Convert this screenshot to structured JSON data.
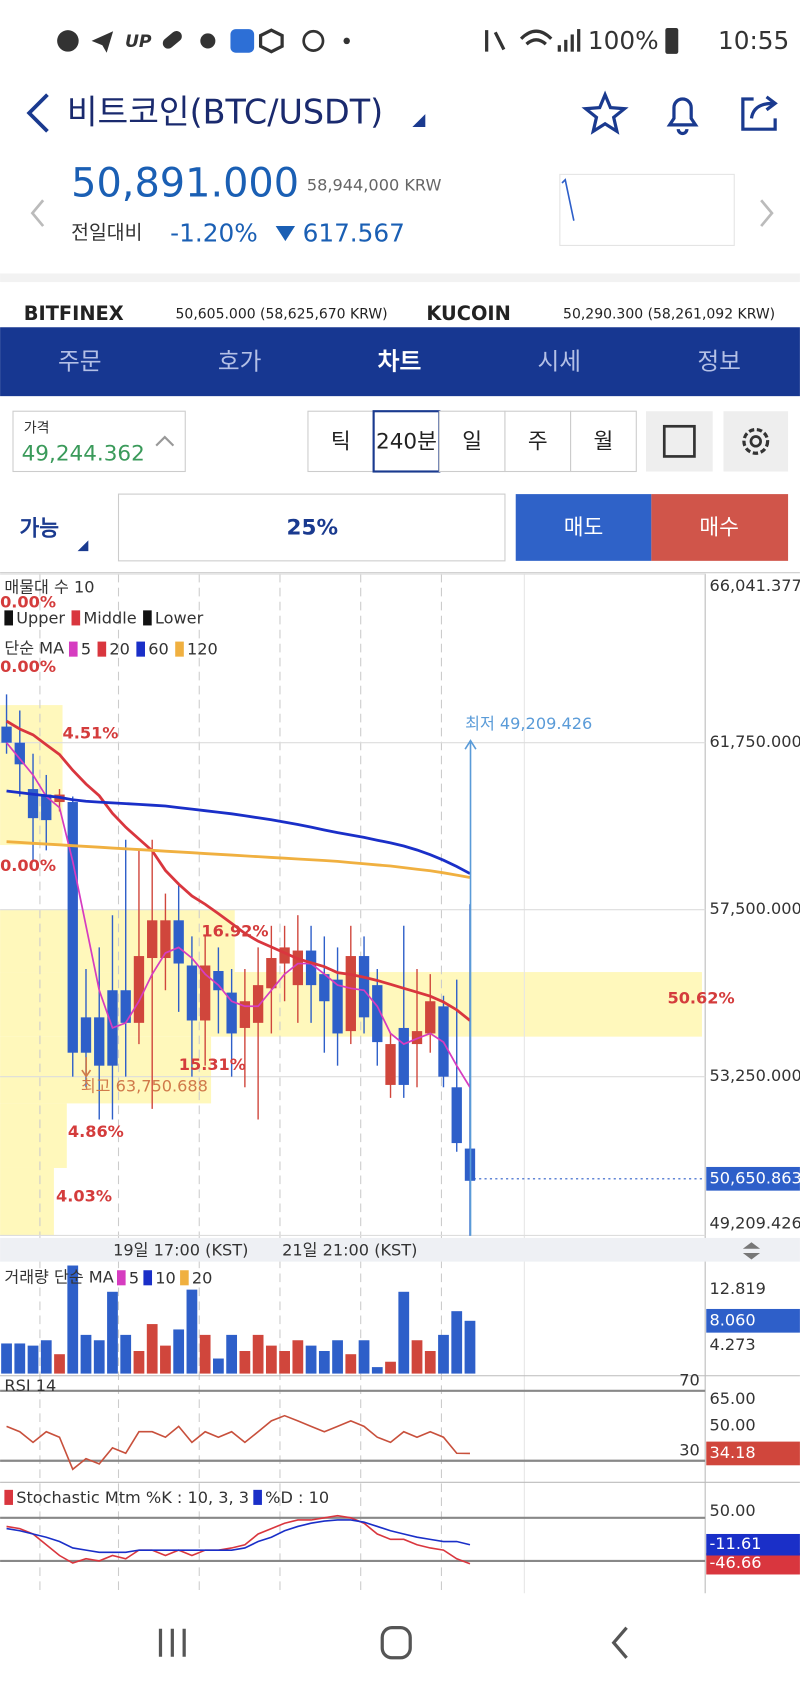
{
  "status_bar": {
    "battery": "100%",
    "time": "10:55"
  },
  "header": {
    "title": "비트코인(BTC/USDT)",
    "price": "50,891.000",
    "krw": "58,944,000 KRW",
    "change_label": "전일대비",
    "change_pct": "-1.20%",
    "change_abs": "617.567"
  },
  "exchanges": [
    {
      "name": "BITFINEX",
      "price": "50,605.000 (58,625,670 KRW)"
    },
    {
      "name": "KUCOIN",
      "price": "50,290.300 (58,261,092 KRW)"
    }
  ],
  "tabs": {
    "items": [
      "주문",
      "호가",
      "차트",
      "시세",
      "정보"
    ],
    "active": 2
  },
  "price_box": {
    "label": "가격",
    "value": "49,244.362"
  },
  "intervals": {
    "items": [
      "틱",
      "240분",
      "일",
      "주",
      "월"
    ],
    "active": 1
  },
  "order": {
    "available": "가능",
    "ratio": "25%",
    "sell": "매도",
    "buy": "매수"
  },
  "chart": {
    "legend": {
      "profile": "매물대 수 10",
      "bands_title": null,
      "bands": [
        {
          "name": "Upper",
          "color": "#111111"
        },
        {
          "name": "Middle",
          "color": "#d9363e"
        },
        {
          "name": "Lower",
          "color": "#111111"
        }
      ],
      "ma_title": "단순 MA"
    },
    "profile_labels": [
      "0.00%",
      "0.00%",
      "4.51%",
      "0.00%",
      "16.92%",
      "50.62%",
      "15.31%",
      "4.86%",
      "4.03%"
    ],
    "low_label": "최저 49,209.426",
    "high_label": "최고 63,750.688",
    "x_labels": [
      "19일 17:00 (KST)",
      "21일 21:00 (KST)"
    ],
    "ylim": [
      49200,
      66050
    ],
    "yticks": [
      {
        "value": 66041.377,
        "label": "66,041.377"
      },
      {
        "value": 61750,
        "label": "61,750.000"
      },
      {
        "value": 57500,
        "label": "57,500.000"
      },
      {
        "value": 53250,
        "label": "53,250.000"
      },
      {
        "value": 49209.426,
        "label": "49,209.426"
      }
    ],
    "current": {
      "value": 50650.863,
      "label": "50,650.863"
    },
    "up_color": "#d0463c",
    "down_color": "#2e5fc9",
    "candles": [
      {
        "open": 62160,
        "high": 62980,
        "low": 61470,
        "close": 61750
      },
      {
        "open": 61750,
        "high": 62570,
        "low": 60380,
        "close": 61200
      },
      {
        "open": 60570,
        "high": 61470,
        "low": 58730,
        "close": 59830
      },
      {
        "open": 60430,
        "high": 60930,
        "low": 59010,
        "close": 59780
      },
      {
        "open": 60240,
        "high": 60570,
        "low": 60000,
        "close": 60430
      },
      {
        "open": 60240,
        "high": 60380,
        "low": 53250,
        "close": 53860
      },
      {
        "open": 54760,
        "high": 55990,
        "low": 52980,
        "close": 53860
      },
      {
        "open": 54760,
        "high": 56540,
        "low": 52160,
        "close": 53530
      },
      {
        "open": 55450,
        "high": 57360,
        "low": 52160,
        "close": 53530
      },
      {
        "open": 55450,
        "high": 59280,
        "low": 53250,
        "close": 54620
      },
      {
        "open": 54620,
        "high": 59010,
        "low": 54080,
        "close": 56320
      },
      {
        "open": 56270,
        "high": 59280,
        "low": 52430,
        "close": 57230
      },
      {
        "open": 56270,
        "high": 57910,
        "low": 55450,
        "close": 57230
      },
      {
        "open": 57230,
        "high": 58190,
        "low": 54900,
        "close": 56130
      },
      {
        "open": 56080,
        "high": 56820,
        "low": 53250,
        "close": 54680
      },
      {
        "open": 54680,
        "high": 56820,
        "low": 53530,
        "close": 56080
      },
      {
        "open": 55940,
        "high": 56540,
        "low": 54350,
        "close": 55450
      },
      {
        "open": 55390,
        "high": 55990,
        "low": 53250,
        "close": 54350
      },
      {
        "open": 54490,
        "high": 55990,
        "low": 52980,
        "close": 55170
      },
      {
        "open": 54620,
        "high": 56540,
        "low": 52160,
        "close": 55580
      },
      {
        "open": 55500,
        "high": 57090,
        "low": 54350,
        "close": 56270
      },
      {
        "open": 56130,
        "high": 57090,
        "low": 55170,
        "close": 56540
      },
      {
        "open": 55580,
        "high": 57360,
        "low": 54620,
        "close": 56460
      },
      {
        "open": 56460,
        "high": 57090,
        "low": 54620,
        "close": 55580
      },
      {
        "open": 55860,
        "high": 56820,
        "low": 53860,
        "close": 55170
      },
      {
        "open": 55720,
        "high": 56540,
        "low": 53530,
        "close": 54350
      },
      {
        "open": 54410,
        "high": 57090,
        "low": 54080,
        "close": 56320
      },
      {
        "open": 56320,
        "high": 56820,
        "low": 54350,
        "close": 54760
      },
      {
        "open": 55580,
        "high": 55990,
        "low": 53530,
        "close": 54130
      },
      {
        "open": 53040,
        "high": 54350,
        "low": 52710,
        "close": 54080
      },
      {
        "open": 54490,
        "high": 57090,
        "low": 52710,
        "close": 53040
      },
      {
        "open": 54080,
        "high": 55990,
        "low": 52980,
        "close": 54410
      },
      {
        "open": 54350,
        "high": 55860,
        "low": 53860,
        "close": 55170
      },
      {
        "open": 55040,
        "high": 55310,
        "low": 52980,
        "close": 53250
      },
      {
        "open": 52980,
        "high": 55720,
        "low": 51340,
        "close": 51560
      },
      {
        "open": 51420,
        "high": 57640,
        "low": 49200,
        "close": 50600
      }
    ],
    "ma": [
      {
        "name": "5",
        "color": "#d63cc0",
        "values": [
          61750,
          61340,
          60930,
          60380,
          60100,
          58730,
          57090,
          55450,
          54490,
          54620,
          55170,
          55860,
          56400,
          56540,
          56270,
          55860,
          55580,
          55170,
          55040,
          55040,
          55450,
          55860,
          56130,
          56130,
          55860,
          55580,
          55500,
          55450,
          55040,
          54350,
          54080,
          54220,
          54350,
          54130,
          53530,
          52980
        ]
      },
      {
        "name": "20",
        "color": "#d9363e",
        "values": [
          62300,
          62100,
          61950,
          61700,
          61450,
          61050,
          60700,
          60400,
          59950,
          59600,
          59300,
          59000,
          58500,
          58150,
          57850,
          57640,
          57400,
          57150,
          56900,
          56700,
          56550,
          56400,
          56250,
          56150,
          56050,
          55900,
          55850,
          55780,
          55700,
          55600,
          55500,
          55400,
          55300,
          55150,
          54950,
          54680
        ]
      },
      {
        "name": "60",
        "color": "#1a2fc8",
        "values": [
          60520,
          60480,
          60440,
          60400,
          60360,
          60300,
          60260,
          60240,
          60220,
          60200,
          60180,
          60160,
          60140,
          60100,
          60060,
          60020,
          59980,
          59940,
          59890,
          59840,
          59790,
          59730,
          59670,
          59600,
          59530,
          59460,
          59400,
          59340,
          59270,
          59200,
          59120,
          59020,
          58900,
          58760,
          58600,
          58420
        ]
      },
      {
        "name": "120",
        "color": "#f0b040",
        "values": [
          59230,
          59210,
          59190,
          59170,
          59150,
          59130,
          59110,
          59090,
          59070,
          59050,
          59030,
          59010,
          58990,
          58970,
          58950,
          58930,
          58910,
          58890,
          58870,
          58850,
          58830,
          58810,
          58790,
          58770,
          58750,
          58730,
          58700,
          58670,
          58640,
          58610,
          58570,
          58530,
          58490,
          58440,
          58380,
          58320
        ]
      }
    ]
  },
  "volume": {
    "title": "거래량 단순 MA",
    "legend": [
      {
        "name": "5",
        "color": "#d63cc0"
      },
      {
        "name": "10",
        "color": "#1a2fc8"
      },
      {
        "name": "20",
        "color": "#f0b040"
      }
    ],
    "ylim": [
      0,
      16.6
    ],
    "yticks": [
      {
        "value": 12.819,
        "label": "12.819"
      },
      {
        "value": 4.273,
        "label": "4.273"
      }
    ],
    "current": {
      "value": 8.06,
      "label": "8.060"
    },
    "values": [
      4.6,
      4.6,
      4.27,
      5.09,
      2.96,
      16.5,
      5.91,
      5.09,
      12.49,
      5.91,
      3.45,
      7.56,
      4.27,
      6.74,
      12.82,
      5.91,
      2.3,
      5.91,
      3.45,
      5.91,
      4.27,
      3.45,
      5.09,
      4.27,
      3.45,
      5.09,
      2.96,
      5.09,
      0.99,
      1.81,
      12.49,
      5.09,
      3.45,
      5.91,
      9.53,
      8.06
    ]
  },
  "rsi": {
    "title": "RSI 14",
    "color": "#c8503c",
    "ylim": [
      18.9,
      77.4
    ],
    "levels": [
      70,
      30
    ],
    "yticks": [
      {
        "value": 65,
        "label": "65.00"
      },
      {
        "value": 50,
        "label": "50.00"
      }
    ],
    "current": 34.18,
    "values": [
      49.7,
      46.6,
      40.5,
      46.6,
      43.5,
      25.1,
      31.2,
      28.2,
      37.4,
      34.3,
      46.6,
      46.6,
      43.5,
      49.7,
      40.5,
      46.6,
      43.5,
      46.6,
      40.5,
      46.6,
      52.8,
      55.8,
      52.8,
      49.7,
      46.6,
      49.7,
      52.8,
      49.7,
      43.5,
      40.5,
      46.6,
      43.5,
      46.6,
      43.5,
      34.3,
      34.18
    ]
  },
  "stochastic": {
    "ylim": [
      -101.1,
      97.7
    ],
    "yticks": [
      {
        "value": 50,
        "label": "50.00"
      }
    ],
    "series": [
      {
        "name": "Stochastic Mtm %K : 10, 3, 3",
        "color": "#d9363e",
        "current": {
          "value": -46.66,
          "label": "-46.66"
        },
        "values": [
          22.2,
          18.2,
          8.3,
          -11.6,
          -31.5,
          -45.4,
          -37.5,
          -41.5,
          -31.5,
          -37.5,
          -21.6,
          -21.6,
          -31.5,
          -21.6,
          -31.5,
          -21.6,
          -21.6,
          -17.6,
          -11.6,
          8.3,
          18.2,
          28.1,
          34.1,
          34.1,
          38.1,
          42,
          38.1,
          28.1,
          8.3,
          -1.7,
          -1.7,
          -11.6,
          -17.6,
          -21.6,
          -37.5,
          -46.66
        ]
      },
      {
        "name": "%D : 10",
        "color": "#1a2fc8",
        "current": {
          "value": -11.61,
          "label": "-11.61"
        },
        "values": [
          18.2,
          14.2,
          8.3,
          2.3,
          -5.7,
          -17.6,
          -21.6,
          -25.5,
          -25.5,
          -25.5,
          -21.6,
          -21.6,
          -21.6,
          -21.6,
          -21.6,
          -21.6,
          -21.6,
          -21.6,
          -17.6,
          -5.7,
          2.3,
          14.2,
          22.2,
          28.1,
          32.1,
          34.1,
          34.1,
          30.1,
          22.2,
          14.2,
          8.3,
          2.3,
          -1.7,
          -5.7,
          -5.7,
          -11.61
        ]
      }
    ]
  }
}
